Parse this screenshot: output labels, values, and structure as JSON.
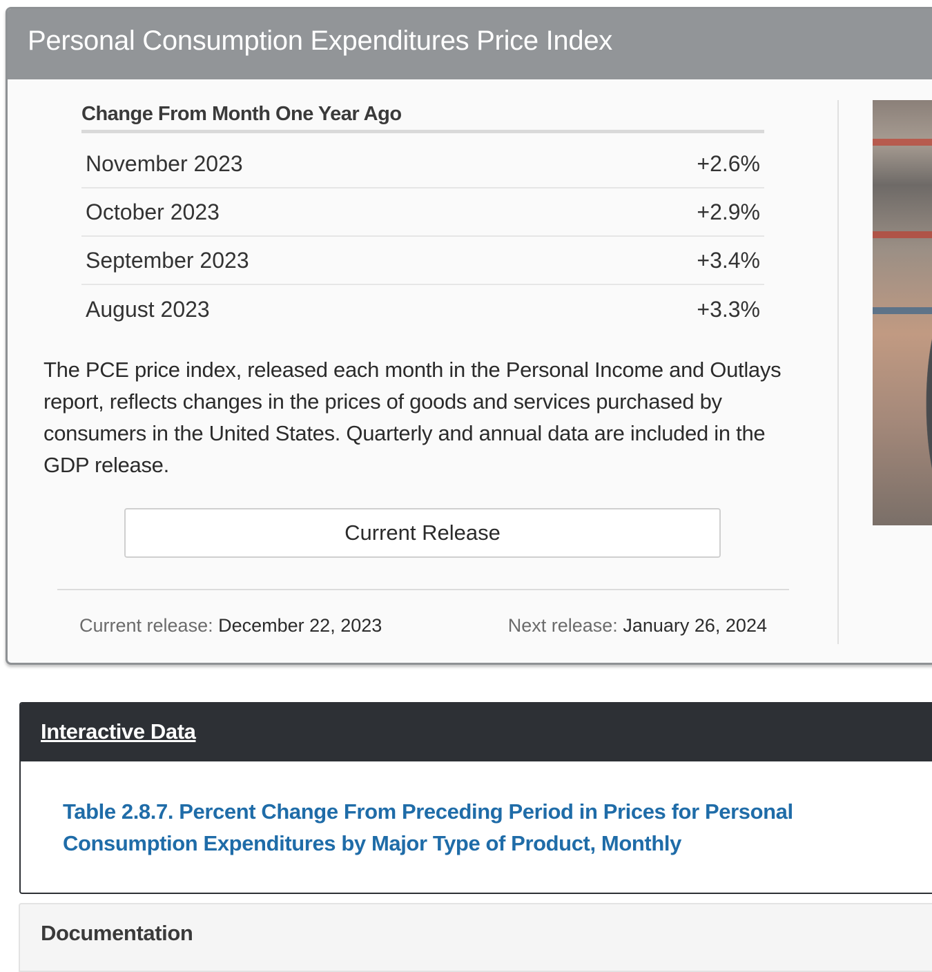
{
  "pce": {
    "title": "Personal Consumption Expenditures Price Index",
    "change_heading": "Change From Month One Year Ago",
    "rows": [
      {
        "month": "November 2023",
        "value": "+2.6%"
      },
      {
        "month": "October 2023",
        "value": "+2.9%"
      },
      {
        "month": "September 2023",
        "value": "+3.4%"
      },
      {
        "month": "August 2023",
        "value": "+3.3%"
      }
    ],
    "description": "The PCE price index, released each month in the Personal Income and Outlays report, reflects changes in the prices of goods and services purchased by consumers in the United States. Quarterly and annual data are included in the GDP release.",
    "button_label": "Current Release",
    "current_release_label": "Current release:",
    "current_release_date": "December 22, 2023",
    "next_release_label": "Next release:",
    "next_release_date": "January 26, 2024"
  },
  "interactive": {
    "title": "Interactive Data",
    "table_link": "Table 2.8.7. Percent Change From Preceding Period in Prices for Personal Consumption Expenditures by Major Type of Product, Monthly"
  },
  "documentation": {
    "title": "Documentation"
  },
  "colors": {
    "pce_header_bg": "#929598",
    "interactive_header_bg": "#2d3035",
    "link_blue": "#1f6ca8"
  }
}
